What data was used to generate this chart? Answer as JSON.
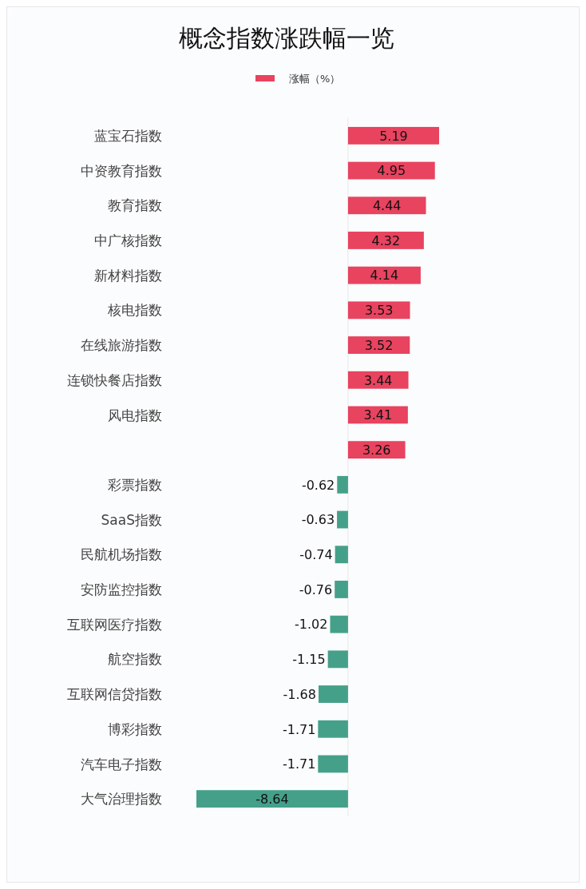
{
  "chart_data": {
    "type": "bar",
    "orientation": "horizontal",
    "title": "概念指数涨跌幅一览",
    "legend": "top",
    "data_labels": true,
    "categories": [
      "蓝宝石指数",
      "中资教育指数",
      "教育指数",
      "中广核指数",
      "新材料指数",
      "核电指数",
      "在线旅游指数",
      "连锁快餐店指数",
      "风电指数",
      null,
      "彩票指数",
      "SaaS指数",
      "民航机场指数",
      "安防监控指数",
      "互联网医疗指数",
      "航空指数",
      "互联网信贷指数",
      "博彩指数",
      "汽车电子指数",
      "大气治理指数"
    ],
    "series": [
      {
        "name": "涨幅（%）",
        "color": "#e8435f",
        "values": [
          5.19,
          4.95,
          4.44,
          4.32,
          4.14,
          3.53,
          3.52,
          3.44,
          3.41,
          3.26,
          -0.62,
          -0.63,
          -0.74,
          -0.76,
          -1.02,
          -1.15,
          -1.68,
          -1.71,
          -1.71,
          -8.64
        ],
        "colors": [
          "#e8435f",
          "#e8435f",
          "#e8435f",
          "#e8435f",
          "#e8435f",
          "#e8435f",
          "#e8435f",
          "#e8435f",
          "#e8435f",
          "#e8435f",
          "#45a08a",
          "#45a08a",
          "#45a08a",
          "#45a08a",
          "#45a08a",
          "#45a08a",
          "#45a08a",
          "#45a08a",
          "#45a08a",
          "#45a08a"
        ]
      }
    ]
  }
}
